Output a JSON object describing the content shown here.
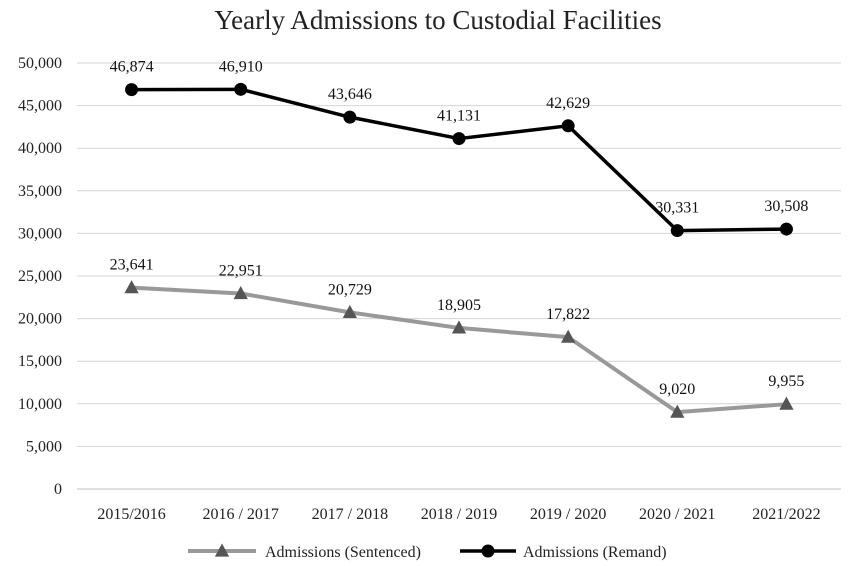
{
  "chart_data": {
    "type": "line",
    "title": "Yearly Admissions to Custodial Facilities",
    "xlabel": "",
    "ylabel": "",
    "categories": [
      "2015/2016",
      "2016 / 2017",
      "2017 / 2018",
      "2018 / 2019",
      "2019 / 2020",
      "2020 / 2021",
      "2021/2022"
    ],
    "ylim": [
      0,
      50000
    ],
    "y_ticks": [
      0,
      5000,
      10000,
      15000,
      20000,
      25000,
      30000,
      35000,
      40000,
      45000,
      50000
    ],
    "y_tick_labels": [
      "0",
      "5,000",
      "10,000",
      "15,000",
      "20,000",
      "25,000",
      "30,000",
      "35,000",
      "40,000",
      "45,000",
      "50,000"
    ],
    "grid": true,
    "legend_position": "bottom",
    "series": [
      {
        "name": "Admissions (Sentenced)",
        "marker": "triangle",
        "color": "#999999",
        "marker_color": "#555555",
        "values": [
          23641,
          22951,
          20729,
          18905,
          17822,
          9020,
          9955
        ],
        "labels": [
          "23,641",
          "22,951",
          "20,729",
          "18,905",
          "17,822",
          "9,020",
          "9,955"
        ]
      },
      {
        "name": "Admissions (Remand)",
        "marker": "circle",
        "color": "#000000",
        "marker_color": "#000000",
        "values": [
          46874,
          46910,
          43646,
          41131,
          42629,
          30331,
          30508
        ],
        "labels": [
          "46,874",
          "46,910",
          "43,646",
          "41,131",
          "42,629",
          "30,331",
          "30,508"
        ]
      }
    ]
  }
}
